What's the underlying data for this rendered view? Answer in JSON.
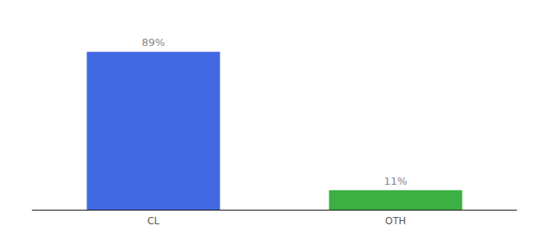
{
  "chart_data": {
    "type": "bar",
    "categories": [
      "CL",
      "OTH"
    ],
    "values": [
      89,
      11
    ],
    "value_labels": [
      "89%",
      "11%"
    ],
    "colors": [
      "#4169e1",
      "#3cb043"
    ],
    "ylim": [
      0,
      100
    ],
    "data_labels": true,
    "tick_labels": "x",
    "grid": false
  }
}
